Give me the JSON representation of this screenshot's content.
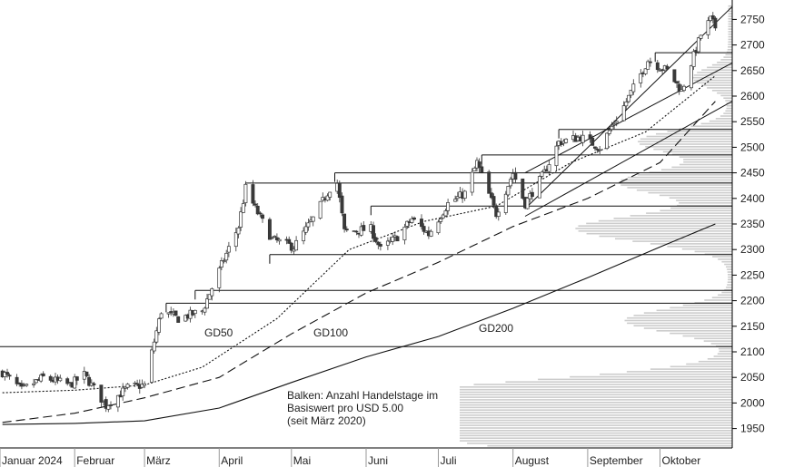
{
  "chart_data": {
    "type": "candlestick",
    "x_axis": {
      "labels": [
        "Januar 2024",
        "Februar",
        "März",
        "April",
        "Mai",
        "Juni",
        "Juli",
        "August",
        "September",
        "Oktober"
      ]
    },
    "y_axis": {
      "ticks": [
        1950,
        2000,
        2050,
        2100,
        2150,
        2200,
        2250,
        2300,
        2350,
        2400,
        2450,
        2500,
        2550,
        2600,
        2650,
        2700,
        2750
      ],
      "ylim": [
        1912,
        2788
      ],
      "side": "right"
    },
    "close_series": [
      {
        "date": "2024-01-02",
        "close": 2060
      },
      {
        "date": "2024-01-10",
        "close": 2025
      },
      {
        "date": "2024-01-19",
        "close": 2050
      },
      {
        "date": "2024-01-30",
        "close": 2035
      },
      {
        "date": "2024-02-05",
        "close": 2055
      },
      {
        "date": "2024-02-14",
        "close": 1995
      },
      {
        "date": "2024-02-23",
        "close": 2030
      },
      {
        "date": "2024-03-01",
        "close": 2035
      },
      {
        "date": "2024-03-05",
        "close": 2120
      },
      {
        "date": "2024-03-08",
        "close": 2180
      },
      {
        "date": "2024-03-15",
        "close": 2165
      },
      {
        "date": "2024-03-25",
        "close": 2180
      },
      {
        "date": "2024-04-02",
        "close": 2270
      },
      {
        "date": "2024-04-09",
        "close": 2345
      },
      {
        "date": "2024-04-12",
        "close": 2420
      },
      {
        "date": "2024-04-16",
        "close": 2380
      },
      {
        "date": "2024-04-23",
        "close": 2320
      },
      {
        "date": "2024-05-02",
        "close": 2305
      },
      {
        "date": "2024-05-10",
        "close": 2360
      },
      {
        "date": "2024-05-17",
        "close": 2420
      },
      {
        "date": "2024-05-20",
        "close": 2430
      },
      {
        "date": "2024-05-23",
        "close": 2335
      },
      {
        "date": "2024-06-03",
        "close": 2340
      },
      {
        "date": "2024-06-07",
        "close": 2300
      },
      {
        "date": "2024-06-14",
        "close": 2325
      },
      {
        "date": "2024-06-20",
        "close": 2360
      },
      {
        "date": "2024-06-27",
        "close": 2330
      },
      {
        "date": "2024-07-05",
        "close": 2390
      },
      {
        "date": "2024-07-12",
        "close": 2410
      },
      {
        "date": "2024-07-17",
        "close": 2470
      },
      {
        "date": "2024-07-25",
        "close": 2370
      },
      {
        "date": "2024-08-01",
        "close": 2450
      },
      {
        "date": "2024-08-06",
        "close": 2390
      },
      {
        "date": "2024-08-14",
        "close": 2450
      },
      {
        "date": "2024-08-20",
        "close": 2510
      },
      {
        "date": "2024-08-29",
        "close": 2520
      },
      {
        "date": "2024-09-06",
        "close": 2500
      },
      {
        "date": "2024-09-16",
        "close": 2580
      },
      {
        "date": "2024-09-26",
        "close": 2670
      },
      {
        "date": "2024-10-04",
        "close": 2650
      },
      {
        "date": "2024-10-10",
        "close": 2610
      },
      {
        "date": "2024-10-18",
        "close": 2720
      },
      {
        "date": "2024-10-22",
        "close": 2750
      },
      {
        "date": "2024-10-24",
        "close": 2735
      }
    ],
    "moving_averages": [
      {
        "label": "GD50",
        "style": "dotted",
        "points": [
          {
            "date": "2024-01-02",
            "close": 2020
          },
          {
            "date": "2024-02-01",
            "close": 2025
          },
          {
            "date": "2024-03-01",
            "close": 2035
          },
          {
            "date": "2024-03-25",
            "close": 2070
          },
          {
            "date": "2024-04-25",
            "close": 2165
          },
          {
            "date": "2024-05-25",
            "close": 2300
          },
          {
            "date": "2024-06-25",
            "close": 2355
          },
          {
            "date": "2024-07-25",
            "close": 2385
          },
          {
            "date": "2024-08-25",
            "close": 2470
          },
          {
            "date": "2024-09-25",
            "close": 2530
          },
          {
            "date": "2024-10-24",
            "close": 2640
          }
        ]
      },
      {
        "label": "GD100",
        "style": "dashed",
        "points": [
          {
            "date": "2024-01-02",
            "close": 1962
          },
          {
            "date": "2024-02-01",
            "close": 1980
          },
          {
            "date": "2024-03-01",
            "close": 2010
          },
          {
            "date": "2024-04-01",
            "close": 2050
          },
          {
            "date": "2024-05-01",
            "close": 2135
          },
          {
            "date": "2024-06-01",
            "close": 2215
          },
          {
            "date": "2024-07-01",
            "close": 2275
          },
          {
            "date": "2024-08-01",
            "close": 2345
          },
          {
            "date": "2024-09-01",
            "close": 2400
          },
          {
            "date": "2024-10-01",
            "close": 2470
          },
          {
            "date": "2024-10-24",
            "close": 2590
          }
        ]
      },
      {
        "label": "GD200",
        "style": "solid",
        "points": [
          {
            "date": "2024-01-02",
            "close": 1958
          },
          {
            "date": "2024-02-01",
            "close": 1960
          },
          {
            "date": "2024-03-01",
            "close": 1965
          },
          {
            "date": "2024-04-01",
            "close": 1990
          },
          {
            "date": "2024-05-01",
            "close": 2040
          },
          {
            "date": "2024-06-01",
            "close": 2090
          },
          {
            "date": "2024-07-01",
            "close": 2130
          },
          {
            "date": "2024-08-01",
            "close": 2185
          },
          {
            "date": "2024-09-01",
            "close": 2245
          },
          {
            "date": "2024-10-01",
            "close": 2305
          },
          {
            "date": "2024-10-24",
            "close": 2350
          }
        ]
      }
    ],
    "horizontal_levels": [
      2110,
      2195,
      2220,
      2290,
      2385,
      2430,
      2450,
      2485,
      2535,
      2685
    ],
    "trend_channel": [
      {
        "from": {
          "date": "2024-08-06",
          "close": 2380
        },
        "to": {
          "date": "2024-10-31",
          "close": 2775
        }
      },
      {
        "from": {
          "date": "2024-08-06",
          "close": 2450
        },
        "to": {
          "date": "2024-10-31",
          "close": 2665
        }
      },
      {
        "from": {
          "date": "2024-08-06",
          "close": 2365
        },
        "to": {
          "date": "2024-10-31",
          "close": 2590
        }
      }
    ],
    "volume_profile": {
      "bin_size": 5,
      "peaks": [
        {
          "price": 1930,
          "relative": 0.95
        },
        {
          "price": 1990,
          "relative": 0.85
        },
        {
          "price": 2025,
          "relative": 0.7
        },
        {
          "price": 2160,
          "relative": 0.38
        },
        {
          "price": 2340,
          "relative": 0.56
        },
        {
          "price": 2430,
          "relative": 0.4
        },
        {
          "price": 2510,
          "relative": 0.33
        },
        {
          "price": 2635,
          "relative": 0.13
        }
      ]
    },
    "annotations": [
      "GD50",
      "GD100",
      "GD200",
      "Balken: Anzahl Handelstage im",
      "Basiswert pro USD 5.00",
      "(seit März 2020)"
    ]
  },
  "labels": {
    "gd50": "GD50",
    "gd100": "GD100",
    "gd200": "GD200",
    "legend_line1": "Balken: Anzahl Handelstage im",
    "legend_line2": "Basiswert pro USD 5.00",
    "legend_line3": "(seit März 2020)"
  },
  "colors": {
    "candle_up": "#ffffff",
    "candle_down": "#3a3a3a",
    "lines": "#111111",
    "volume_bars": "#cccccc",
    "grid": "#000000"
  }
}
